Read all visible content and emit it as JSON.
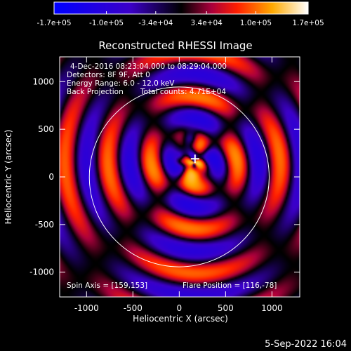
{
  "chart_data": {
    "type": "heatmap",
    "title": "Reconstructed RHESSI Image",
    "xlabel": "Heliocentric X (arcsec)",
    "ylabel": "Heliocentric Y (arcsec)",
    "xlim": [
      -1290,
      1300
    ],
    "ylim": [
      -1260,
      1260
    ],
    "x_ticks": [
      -1000,
      -500,
      0,
      500,
      1000
    ],
    "y_ticks": [
      -1000,
      -500,
      0,
      500,
      1000
    ],
    "colorbar": {
      "range": [
        -170000,
        170000
      ],
      "tick_labels": [
        "-1.7e+05",
        "-1.0e+05",
        "-3.4e+04",
        "3.4e+04",
        "1.0e+05",
        "1.7e+05"
      ],
      "tick_values": [
        -170000,
        -100000,
        -34000,
        34000,
        100000,
        170000
      ]
    },
    "annotations": {
      "time_range": "4-Dec-2016 08:23:04.000 to 08:29:04.000",
      "detectors": "Detectors: 8F 9F, Att 0",
      "energy": "Energy Range: 6.0 - 12.0 keV",
      "method": "Back Projection",
      "counts": "Total counts: 4.71E+04",
      "spin_axis": "Spin Axis = [159,153]",
      "flare_position": "Flare Position = [116,-78]"
    },
    "solar_disk_radius_arcsec": 970,
    "map_center_arcsec": [
      160,
      150
    ],
    "marker_position_arcsec": [
      170,
      190
    ]
  },
  "footer_date": "5-Sep-2022 16:04",
  "colors": {
    "background": "#000000",
    "text": "#ffffff"
  }
}
